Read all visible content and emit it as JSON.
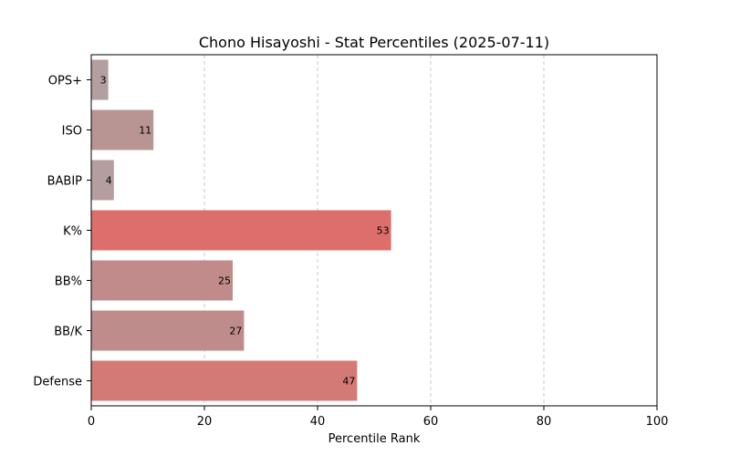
{
  "chart_data": {
    "type": "bar",
    "orientation": "horizontal",
    "title": "Chono Hisayoshi - Stat Percentiles (2025-07-11)",
    "xlabel": "Percentile Rank",
    "ylabel": "",
    "xlim": [
      0,
      100
    ],
    "xticks": [
      0,
      20,
      40,
      60,
      80,
      100
    ],
    "grid": "x-dashed",
    "categories": [
      "OPS+",
      "ISO",
      "BABIP",
      "K%",
      "BB%",
      "BB/K",
      "Defense"
    ],
    "values": [
      3,
      11,
      4,
      53,
      25,
      27,
      47
    ],
    "colors": [
      "#b49e9f",
      "#b89493",
      "#b49e9f",
      "#dc6f6c",
      "#c08b8a",
      "#be8d8b",
      "#d47a76"
    ]
  }
}
